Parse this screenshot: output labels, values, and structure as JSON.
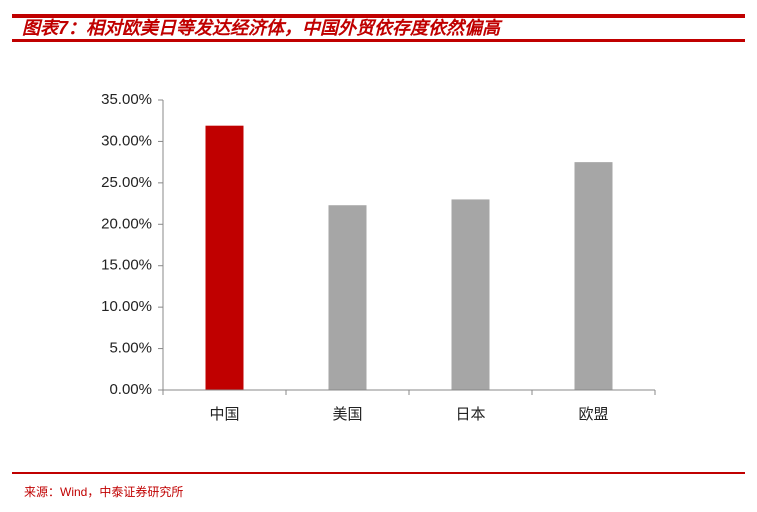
{
  "chart_data": {
    "type": "bar",
    "title": "图表7：相对欧美日等发达经济体，中国外贸依存度依然偏高",
    "source": "来源：Wind，中泰证券研究所",
    "categories": [
      "中国",
      "美国",
      "日本",
      "欧盟"
    ],
    "values": [
      31.9,
      22.3,
      23.0,
      27.5
    ],
    "colors": [
      "#c00000",
      "#a6a6a6",
      "#a6a6a6",
      "#a6a6a6"
    ],
    "ylim": [
      0,
      35
    ],
    "yticks": [
      {
        "value": 0,
        "label": "0.00%"
      },
      {
        "value": 5,
        "label": "5.00%"
      },
      {
        "value": 10,
        "label": "10.00%"
      },
      {
        "value": 15,
        "label": "15.00%"
      },
      {
        "value": 20,
        "label": "20.00%"
      },
      {
        "value": 25,
        "label": "25.00%"
      },
      {
        "value": 30,
        "label": "30.00%"
      },
      {
        "value": 35,
        "label": "35.00%"
      }
    ],
    "grid": false
  }
}
